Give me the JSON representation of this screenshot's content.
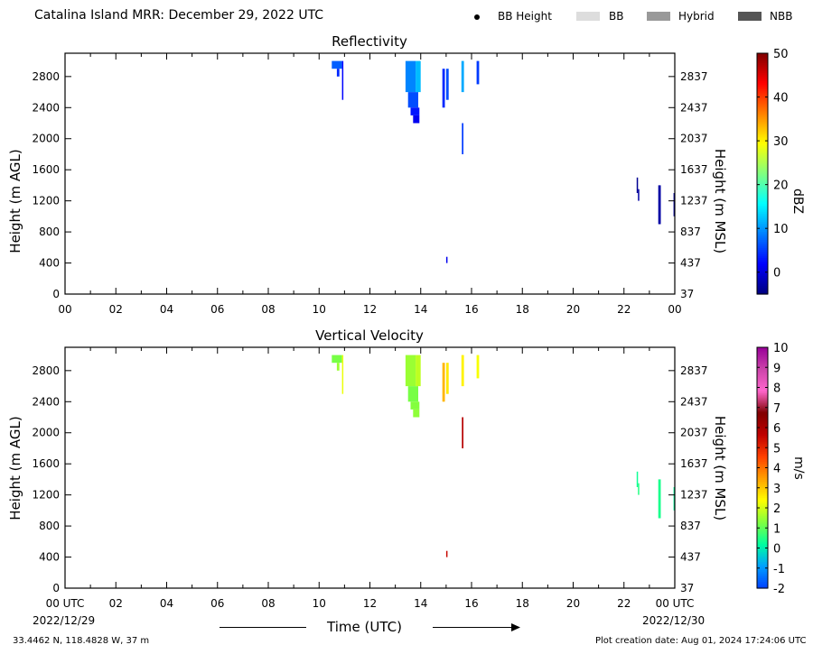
{
  "header": {
    "title": "Catalina Island MRR:  December 29, 2022 UTC",
    "legend": [
      {
        "label": "BB Height",
        "marker": "dot",
        "color": "#000000"
      },
      {
        "label": "BB",
        "marker": "swatch",
        "color": "#dddddd"
      },
      {
        "label": "Hybrid",
        "marker": "swatch",
        "color": "#999999"
      },
      {
        "label": "NBB",
        "marker": "swatch",
        "color": "#555555"
      }
    ]
  },
  "footer": {
    "xlabel": "Time (UTC)",
    "start_date": "2022/12/29",
    "end_date": "2022/12/30",
    "location": "33.4462 N, 118.4828 W, 37 m",
    "creation": "Plot creation date: Aug 01, 2024 17:24:06 UTC"
  },
  "chart_data": [
    {
      "type": "heatmap",
      "title": "Reflectivity",
      "ylabel": "Height (m AGL)",
      "ylabel_right": "Height (m MSL)",
      "xlim": [
        0,
        24
      ],
      "ylim": [
        0,
        3100
      ],
      "x_ticks": [
        "00",
        "02",
        "04",
        "06",
        "08",
        "10",
        "12",
        "14",
        "16",
        "18",
        "20",
        "22",
        "00"
      ],
      "y_ticks": [
        0,
        400,
        800,
        1200,
        1600,
        2000,
        2400,
        2800
      ],
      "y_ticks_right": [
        "37",
        "437",
        "837",
        "1237",
        "1637",
        "2037",
        "2437",
        "2837"
      ],
      "colorbar": {
        "label": "dBZ",
        "range": [
          -5,
          50
        ],
        "ticks": [
          0,
          10,
          20,
          30,
          40,
          50
        ],
        "colors": [
          "#00007f",
          "#0000ff",
          "#0080ff",
          "#00ffff",
          "#80ff80",
          "#ffff00",
          "#ff8000",
          "#ff0000",
          "#7f0000"
        ]
      },
      "cells": [
        {
          "t0": 10.5,
          "t1": 10.9,
          "h0": 2900,
          "h1": 3000,
          "value": 7
        },
        {
          "t0": 10.7,
          "t1": 10.8,
          "h0": 2800,
          "h1": 2900,
          "value": 4
        },
        {
          "t0": 10.9,
          "t1": 10.95,
          "h0": 2500,
          "h1": 3000,
          "value": 2
        },
        {
          "t0": 13.4,
          "t1": 13.8,
          "h0": 2600,
          "h1": 3000,
          "value": 9
        },
        {
          "t0": 13.5,
          "t1": 13.9,
          "h0": 2400,
          "h1": 2600,
          "value": 6
        },
        {
          "t0": 13.6,
          "t1": 13.95,
          "h0": 2300,
          "h1": 2400,
          "value": 3
        },
        {
          "t0": 13.7,
          "t1": 13.95,
          "h0": 2200,
          "h1": 2300,
          "value": 1
        },
        {
          "t0": 13.8,
          "t1": 14.0,
          "h0": 2600,
          "h1": 3000,
          "value": 12
        },
        {
          "t0": 14.85,
          "t1": 14.95,
          "h0": 2400,
          "h1": 2900,
          "value": 4
        },
        {
          "t0": 15.0,
          "t1": 15.1,
          "h0": 2500,
          "h1": 2900,
          "value": 6
        },
        {
          "t0": 15.0,
          "t1": 15.05,
          "h0": 400,
          "h1": 480,
          "value": 1
        },
        {
          "t0": 15.6,
          "t1": 15.7,
          "h0": 2600,
          "h1": 3000,
          "value": 11
        },
        {
          "t0": 15.62,
          "t1": 15.68,
          "h0": 1800,
          "h1": 2200,
          "value": 5
        },
        {
          "t0": 16.2,
          "t1": 16.3,
          "h0": 2700,
          "h1": 3000,
          "value": 5
        },
        {
          "t0": 22.5,
          "t1": 22.55,
          "h0": 1300,
          "h1": 1500,
          "value": -4
        },
        {
          "t0": 22.55,
          "t1": 22.6,
          "h0": 1200,
          "h1": 1350,
          "value": -3
        },
        {
          "t0": 23.35,
          "t1": 23.45,
          "h0": 900,
          "h1": 1400,
          "value": -3
        },
        {
          "t0": 23.95,
          "t1": 24.0,
          "h0": 1000,
          "h1": 1300,
          "value": -3
        }
      ]
    },
    {
      "type": "heatmap",
      "title": "Vertical Velocity",
      "ylabel": "Height (m AGL)",
      "ylabel_right": "Height (m MSL)",
      "xlim": [
        0,
        24
      ],
      "ylim": [
        0,
        3100
      ],
      "x_ticks": [
        "00 UTC",
        "02",
        "04",
        "06",
        "08",
        "10",
        "12",
        "14",
        "16",
        "18",
        "20",
        "22",
        "00 UTC"
      ],
      "y_ticks": [
        0,
        400,
        800,
        1200,
        1600,
        2000,
        2400,
        2800
      ],
      "y_ticks_right": [
        "37",
        "437",
        "837",
        "1237",
        "1637",
        "2037",
        "2437",
        "2837"
      ],
      "colorbar": {
        "label": "m/s",
        "range": [
          -2,
          10
        ],
        "ticks": [
          -2,
          -1,
          0,
          1,
          2,
          3,
          4,
          5,
          6,
          7,
          8,
          9,
          10
        ],
        "colors": [
          "#0040ff",
          "#00a0ff",
          "#00ffa0",
          "#80ff40",
          "#ffff00",
          "#ffa000",
          "#ff4000",
          "#c00000",
          "#800000",
          "#ff66cc",
          "#cc44aa",
          "#990099"
        ]
      },
      "cells": [
        {
          "t0": 10.5,
          "t1": 10.9,
          "h0": 2900,
          "h1": 3000,
          "value": 1.2
        },
        {
          "t0": 10.7,
          "t1": 10.8,
          "h0": 2800,
          "h1": 2900,
          "value": 1.5
        },
        {
          "t0": 10.9,
          "t1": 10.95,
          "h0": 2500,
          "h1": 3000,
          "value": 2.2
        },
        {
          "t0": 13.4,
          "t1": 13.8,
          "h0": 2600,
          "h1": 3000,
          "value": 1.5
        },
        {
          "t0": 13.5,
          "t1": 13.9,
          "h0": 2400,
          "h1": 2600,
          "value": 1.2
        },
        {
          "t0": 13.6,
          "t1": 13.95,
          "h0": 2300,
          "h1": 2400,
          "value": 1.3
        },
        {
          "t0": 13.7,
          "t1": 13.95,
          "h0": 2200,
          "h1": 2300,
          "value": 1.4
        },
        {
          "t0": 13.8,
          "t1": 14.0,
          "h0": 2600,
          "h1": 3000,
          "value": 1.8
        },
        {
          "t0": 14.85,
          "t1": 14.95,
          "h0": 2400,
          "h1": 2900,
          "value": 3.2
        },
        {
          "t0": 15.0,
          "t1": 15.1,
          "h0": 2500,
          "h1": 2900,
          "value": 2.6
        },
        {
          "t0": 15.0,
          "t1": 15.05,
          "h0": 400,
          "h1": 480,
          "value": 5.5
        },
        {
          "t0": 15.6,
          "t1": 15.7,
          "h0": 2600,
          "h1": 3000,
          "value": 2.5
        },
        {
          "t0": 15.62,
          "t1": 15.68,
          "h0": 1800,
          "h1": 2200,
          "value": 5.8
        },
        {
          "t0": 16.2,
          "t1": 16.3,
          "h0": 2700,
          "h1": 3000,
          "value": 2.3
        },
        {
          "t0": 22.5,
          "t1": 22.55,
          "h0": 1300,
          "h1": 1500,
          "value": 0.3
        },
        {
          "t0": 22.55,
          "t1": 22.6,
          "h0": 1200,
          "h1": 1350,
          "value": 0.5
        },
        {
          "t0": 23.35,
          "t1": 23.45,
          "h0": 900,
          "h1": 1400,
          "value": 0.4
        },
        {
          "t0": 23.95,
          "t1": 24.0,
          "h0": 1000,
          "h1": 1300,
          "value": 0.2
        }
      ]
    }
  ]
}
